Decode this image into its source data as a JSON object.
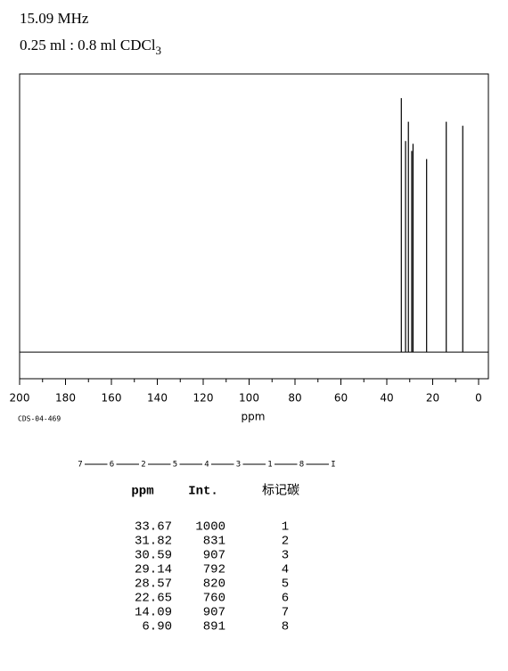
{
  "header": {
    "frequency": "15.09 MHz",
    "solvent": "0.25 ml : 0.8 ml CDCl",
    "solvent_sub": "3"
  },
  "chart_data": {
    "type": "spectrum",
    "code": "CDS-04-469",
    "x_label": "ppm",
    "x": [
      33.67,
      31.82,
      30.59,
      29.14,
      28.57,
      22.65,
      14.09,
      6.9
    ],
    "values": [
      1000,
      831,
      907,
      792,
      820,
      760,
      907,
      891
    ],
    "color": "#000000",
    "xlim": [
      200,
      0
    ],
    "xticks": [
      200,
      180,
      160,
      140,
      120,
      100,
      80,
      60,
      40,
      20,
      0
    ],
    "ylim": [
      -105,
      1095
    ]
  },
  "structure": {
    "nodes": [
      "7",
      "6",
      "2",
      "5",
      "4",
      "3",
      "1",
      "8",
      "I"
    ]
  },
  "table": {
    "header": [
      "ppm",
      "Int.",
      "标记碳"
    ],
    "rows": [
      [
        "33.67",
        "1000",
        "1"
      ],
      [
        "31.82",
        "831",
        "2"
      ],
      [
        "30.59",
        "907",
        "3"
      ],
      [
        "29.14",
        "792",
        "4"
      ],
      [
        "28.57",
        "820",
        "5"
      ],
      [
        "22.65",
        "760",
        "6"
      ],
      [
        "14.09",
        "907",
        "7"
      ],
      [
        "6.90",
        "891",
        "8"
      ]
    ]
  }
}
